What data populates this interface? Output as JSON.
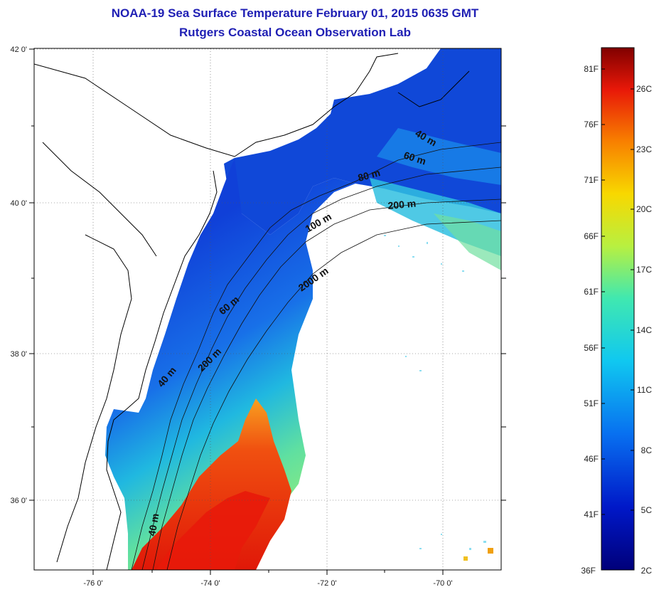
{
  "header": {
    "title": "NOAA-19 Sea Surface Temperature February 01, 2015 0635 GMT",
    "subtitle": "Rutgers Coastal Ocean Observation Lab"
  },
  "map": {
    "lon_ticks": [
      "-76 0'",
      "-74 0'",
      "-72 0'",
      "-70 0'"
    ],
    "lat_ticks": [
      "42 0'",
      "40 0'",
      "38 0'",
      "36 0'"
    ],
    "contour_labels": [
      "40 m",
      "60 m",
      "80 m",
      "200 m",
      "100 m",
      "2000 m",
      "60 m",
      "200 m",
      "40 m",
      "40 m"
    ]
  },
  "colorbar": {
    "fahrenheit_labels": [
      "81F",
      "76F",
      "71F",
      "66F",
      "61F",
      "56F",
      "51F",
      "46F",
      "41F",
      "36F"
    ],
    "celsius_labels": [
      "26C",
      "23C",
      "20C",
      "17C",
      "14C",
      "11C",
      "8C",
      "5C",
      "2C"
    ]
  },
  "colors": {
    "title": "#1f1fb4",
    "cold": "#08288c",
    "warm": "#e01810",
    "land_outline": "#000000"
  }
}
